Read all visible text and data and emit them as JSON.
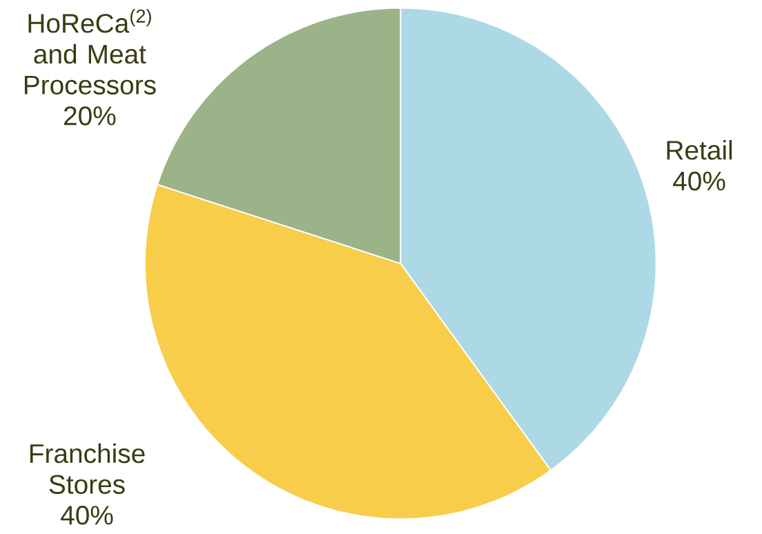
{
  "chart_data": {
    "type": "pie",
    "categories": [
      "Retail",
      "Franchise Stores",
      "HoReCa$^{(2)}$ and Meat Processors"
    ],
    "values": [
      40,
      40,
      20
    ],
    "value_labels": [
      "40%",
      "40%",
      "20%"
    ],
    "colors": [
      "#add8e6",
      "#f7cd4a",
      "#9bb389"
    ]
  }
}
